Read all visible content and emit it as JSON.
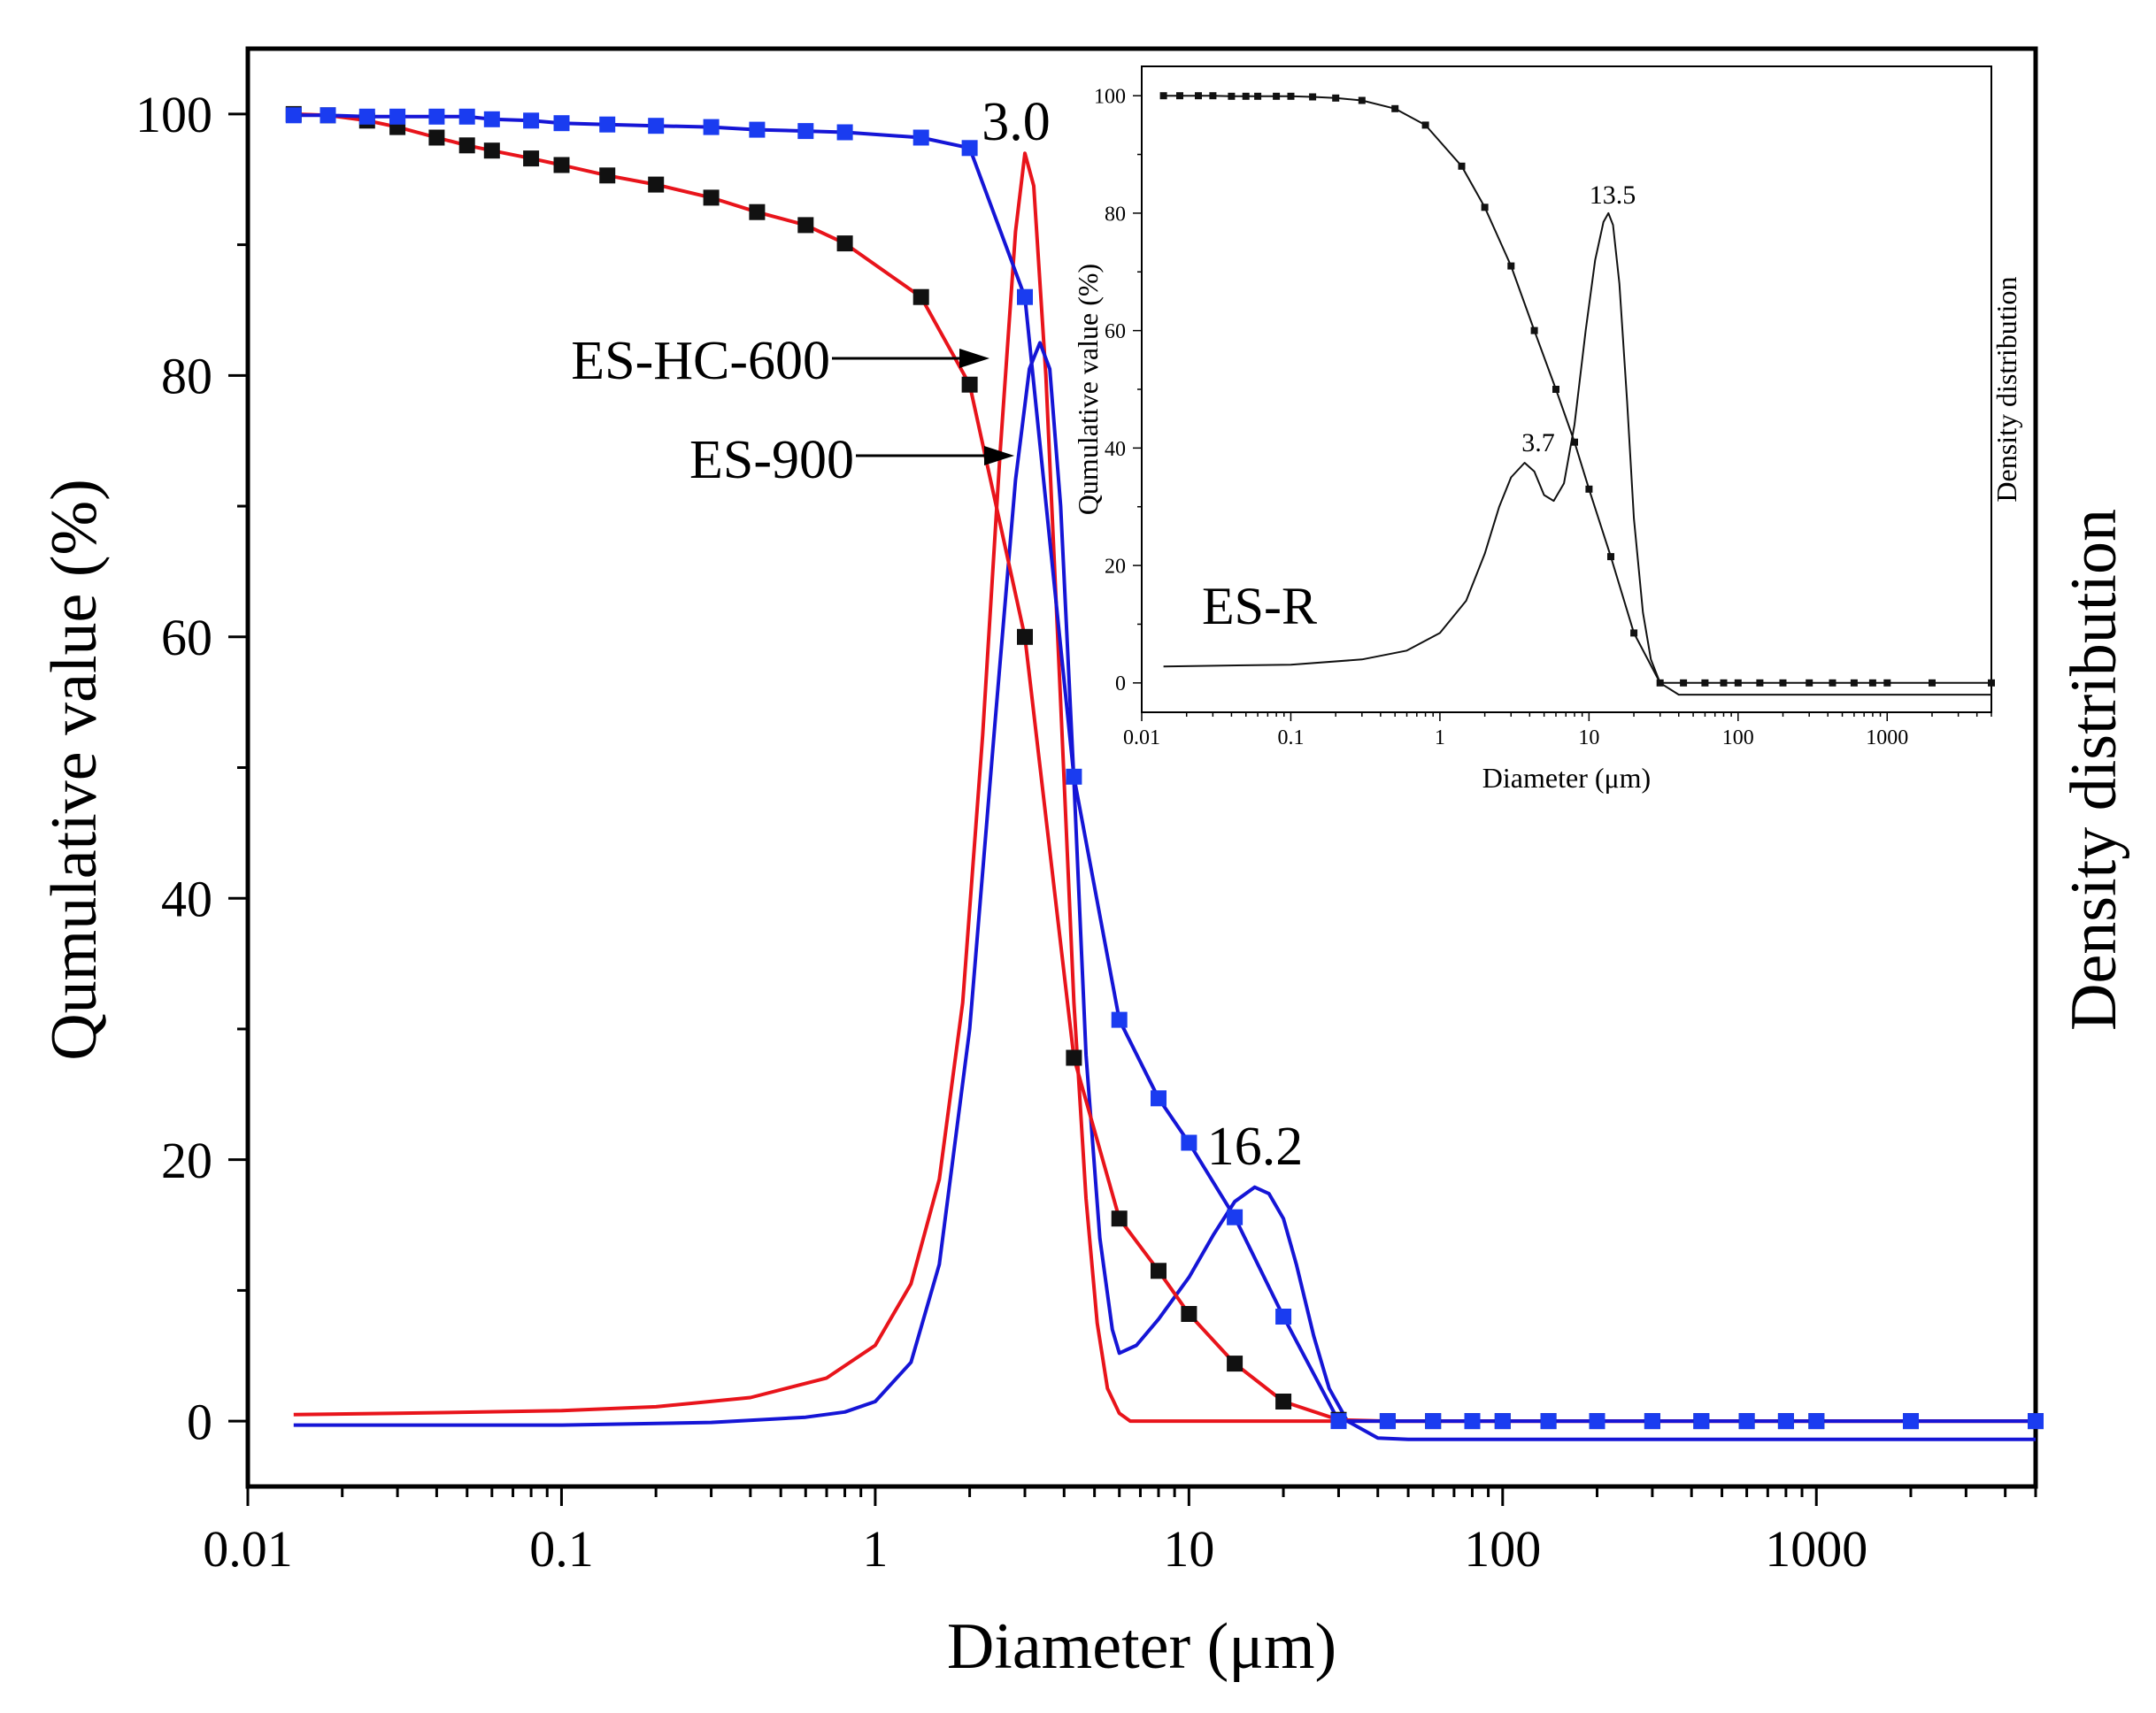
{
  "chart_data": [
    {
      "type": "line",
      "xscale": "log",
      "xlabel": "Diameter (μm)",
      "ylabel": "Qumulative value (%)",
      "ylabel_right": "Density distribution",
      "xlim": [
        0.01,
        5000
      ],
      "ylim": [
        -5,
        105
      ],
      "x_ticks": [
        {
          "value": 0.01,
          "label": "0.01"
        },
        {
          "value": 0.1,
          "label": "0.1"
        },
        {
          "value": 1,
          "label": "1"
        },
        {
          "value": 10,
          "label": "10"
        },
        {
          "value": 100,
          "label": "100"
        },
        {
          "value": 1000,
          "label": "1000"
        }
      ],
      "y_ticks": [
        {
          "value": 0,
          "label": "0"
        },
        {
          "value": 20,
          "label": "20"
        },
        {
          "value": 40,
          "label": "40"
        },
        {
          "value": 60,
          "label": "60"
        },
        {
          "value": 80,
          "label": "80"
        },
        {
          "value": 100,
          "label": "100"
        }
      ],
      "series": [
        {
          "name": "ES-HC-600 cumulative",
          "color": "#e8141b",
          "marker_color": "#111111",
          "marker": "square",
          "x": [
            0.014,
            0.018,
            0.024,
            0.03,
            0.04,
            0.05,
            0.06,
            0.08,
            0.1,
            0.14,
            0.2,
            0.3,
            0.42,
            0.6,
            0.8,
            1.4,
            2.0,
            3.0,
            4.3,
            6.0,
            8.0,
            10.0,
            14.0,
            20.0,
            30.0,
            43.0,
            60.0,
            80.0,
            100.0,
            140.0,
            200.0,
            300.0,
            430.0,
            600.0,
            800.0,
            1000.0,
            2000.0,
            5000.0
          ],
          "y": [
            100.0,
            99.9,
            99.5,
            99.0,
            98.2,
            97.6,
            97.2,
            96.6,
            96.1,
            95.3,
            94.6,
            93.6,
            92.5,
            91.5,
            90.1,
            86.0,
            79.3,
            60.0,
            27.8,
            15.5,
            11.5,
            8.2,
            4.4,
            1.5,
            0.1,
            0.0,
            0.0,
            0.0,
            0.0,
            0.0,
            0.0,
            0.0,
            0.0,
            0.0,
            0.0,
            0.0,
            0.0,
            0.0
          ]
        },
        {
          "name": "ES-900 cumulative",
          "color": "#1515d6",
          "marker_color": "#1a3cf0",
          "marker": "square",
          "x": [
            0.014,
            0.018,
            0.024,
            0.03,
            0.04,
            0.05,
            0.06,
            0.08,
            0.1,
            0.14,
            0.2,
            0.3,
            0.42,
            0.6,
            0.8,
            1.4,
            2.0,
            3.0,
            4.3,
            6.0,
            8.0,
            10.0,
            14.0,
            20.0,
            30.0,
            43.0,
            60.0,
            80.0,
            100.0,
            140.0,
            200.0,
            300.0,
            430.0,
            600.0,
            800.0,
            1000.0,
            2000.0,
            5000.0
          ],
          "y": [
            99.9,
            99.9,
            99.8,
            99.8,
            99.8,
            99.8,
            99.6,
            99.5,
            99.3,
            99.2,
            99.1,
            99.0,
            98.8,
            98.7,
            98.6,
            98.2,
            97.4,
            86.0,
            49.3,
            30.7,
            24.7,
            21.3,
            15.6,
            8.0,
            0.0,
            0.0,
            0.0,
            0.0,
            0.0,
            0.0,
            0.0,
            0.0,
            0.0,
            0.0,
            0.0,
            0.0,
            0.0,
            0.0
          ]
        },
        {
          "name": "ES-HC-600 density",
          "color": "#e8141b",
          "x": [
            0.014,
            0.03,
            0.1,
            0.2,
            0.4,
            0.7,
            1.0,
            1.3,
            1.6,
            1.9,
            2.2,
            2.5,
            2.8,
            3.0,
            3.2,
            3.5,
            3.9,
            4.3,
            4.7,
            5.1,
            5.5,
            6.0,
            6.5,
            8.0,
            15.0,
            100.0,
            5000.0
          ],
          "y": [
            0.5,
            0.6,
            0.8,
            1.1,
            1.8,
            3.3,
            5.8,
            10.5,
            18.5,
            32.0,
            52.5,
            74.0,
            91.0,
            97.0,
            94.5,
            80.0,
            55.0,
            32.0,
            17.0,
            7.5,
            2.5,
            0.6,
            0.0,
            0.0,
            0.0,
            0.0,
            0.0
          ]
        },
        {
          "name": "ES-900 density",
          "color": "#1515d6",
          "x": [
            0.014,
            0.1,
            0.3,
            0.6,
            0.8,
            1.0,
            1.3,
            1.6,
            2.0,
            2.4,
            2.8,
            3.1,
            3.35,
            3.6,
            3.9,
            4.3,
            4.7,
            5.2,
            5.7,
            6.0,
            6.8,
            8.0,
            10.0,
            12.0,
            14.0,
            16.2,
            18.0,
            20.0,
            22.0,
            25.0,
            28.0,
            32.0,
            40.0,
            50.0,
            100.0,
            5000.0
          ],
          "y": [
            -0.3,
            -0.3,
            -0.1,
            0.3,
            0.7,
            1.5,
            4.5,
            12.0,
            30.0,
            53.0,
            72.0,
            80.5,
            82.5,
            80.5,
            70.0,
            49.0,
            28.0,
            14.0,
            7.0,
            5.2,
            5.8,
            7.8,
            11.0,
            14.3,
            16.8,
            17.9,
            17.4,
            15.5,
            12.0,
            6.5,
            2.5,
            0.0,
            -1.3,
            -1.4,
            -1.4,
            -1.4
          ]
        }
      ],
      "annotations": [
        {
          "text": "3.0",
          "x": 3.0,
          "y": 97
        },
        {
          "text": "16.2",
          "x": 16.2,
          "y": 18
        },
        {
          "text": "ES-HC-600",
          "arrow_to": {
            "x": 2.3,
            "y": 81
          }
        },
        {
          "text": "ES-900",
          "arrow_to": {
            "x": 2.7,
            "y": 74
          }
        }
      ]
    },
    {
      "type": "line",
      "xscale": "log",
      "xlabel": "Diameter (μm)",
      "ylabel": "Qumulative value (%)",
      "ylabel_right": "Density distribution",
      "panel_label": "ES-R",
      "xlim": [
        0.01,
        5000
      ],
      "ylim": [
        -5,
        105
      ],
      "x_ticks": [
        {
          "value": 0.01,
          "label": "0.01"
        },
        {
          "value": 0.1,
          "label": "0.1"
        },
        {
          "value": 1,
          "label": "1"
        },
        {
          "value": 10,
          "label": "10"
        },
        {
          "value": 100,
          "label": "100"
        },
        {
          "value": 1000,
          "label": "1000"
        }
      ],
      "y_ticks": [
        {
          "value": 0,
          "label": "0"
        },
        {
          "value": 20,
          "label": "20"
        },
        {
          "value": 40,
          "label": "40"
        },
        {
          "value": 60,
          "label": "60"
        },
        {
          "value": 80,
          "label": "80"
        },
        {
          "value": 100,
          "label": "100"
        }
      ],
      "series": [
        {
          "name": "ES-R cumulative",
          "color": "#111111",
          "marker": "square",
          "x": [
            0.014,
            0.018,
            0.024,
            0.03,
            0.04,
            0.05,
            0.06,
            0.08,
            0.1,
            0.14,
            0.2,
            0.3,
            0.5,
            0.8,
            1.4,
            2.0,
            3.0,
            4.3,
            6.0,
            8.0,
            10.0,
            14.0,
            20.0,
            30.0,
            43.0,
            60.0,
            80.0,
            100.0,
            140.0,
            200.0,
            300.0,
            430.0,
            600.0,
            800.0,
            1000.0,
            2000.0,
            5000.0
          ],
          "y": [
            100.0,
            100.0,
            100.0,
            100.0,
            99.9,
            99.9,
            99.9,
            99.9,
            99.9,
            99.8,
            99.6,
            99.2,
            97.8,
            95.0,
            88.0,
            81.0,
            71.0,
            60.0,
            50.0,
            41.0,
            33.0,
            21.5,
            8.5,
            0.0,
            0.0,
            0.0,
            0.0,
            0.0,
            0.0,
            0.0,
            0.0,
            0.0,
            0.0,
            0.0,
            0.0,
            0.0,
            0.0
          ]
        },
        {
          "name": "ES-R density",
          "color": "#111111",
          "x": [
            0.014,
            0.1,
            0.3,
            0.6,
            1.0,
            1.5,
            2.0,
            2.5,
            3.0,
            3.7,
            4.3,
            5.0,
            5.8,
            6.8,
            8.0,
            9.5,
            11.0,
            12.5,
            13.5,
            14.5,
            16.0,
            18.0,
            20.0,
            23.0,
            26.0,
            30.0,
            40.0,
            100.0,
            5000.0
          ],
          "y": [
            2.8,
            3.1,
            4.0,
            5.5,
            8.5,
            14.0,
            22.0,
            30.0,
            35.0,
            37.5,
            36.0,
            32.0,
            31.0,
            34.0,
            44.0,
            60.0,
            72.0,
            78.5,
            80.0,
            78.0,
            68.0,
            48.0,
            28.0,
            12.0,
            4.0,
            0.0,
            -2.0,
            -2.0,
            -2.0
          ]
        }
      ],
      "annotations": [
        {
          "text": "3.7",
          "x": 3.7,
          "y": 37.5
        },
        {
          "text": "13.5",
          "x": 13.5,
          "y": 80
        }
      ]
    }
  ]
}
